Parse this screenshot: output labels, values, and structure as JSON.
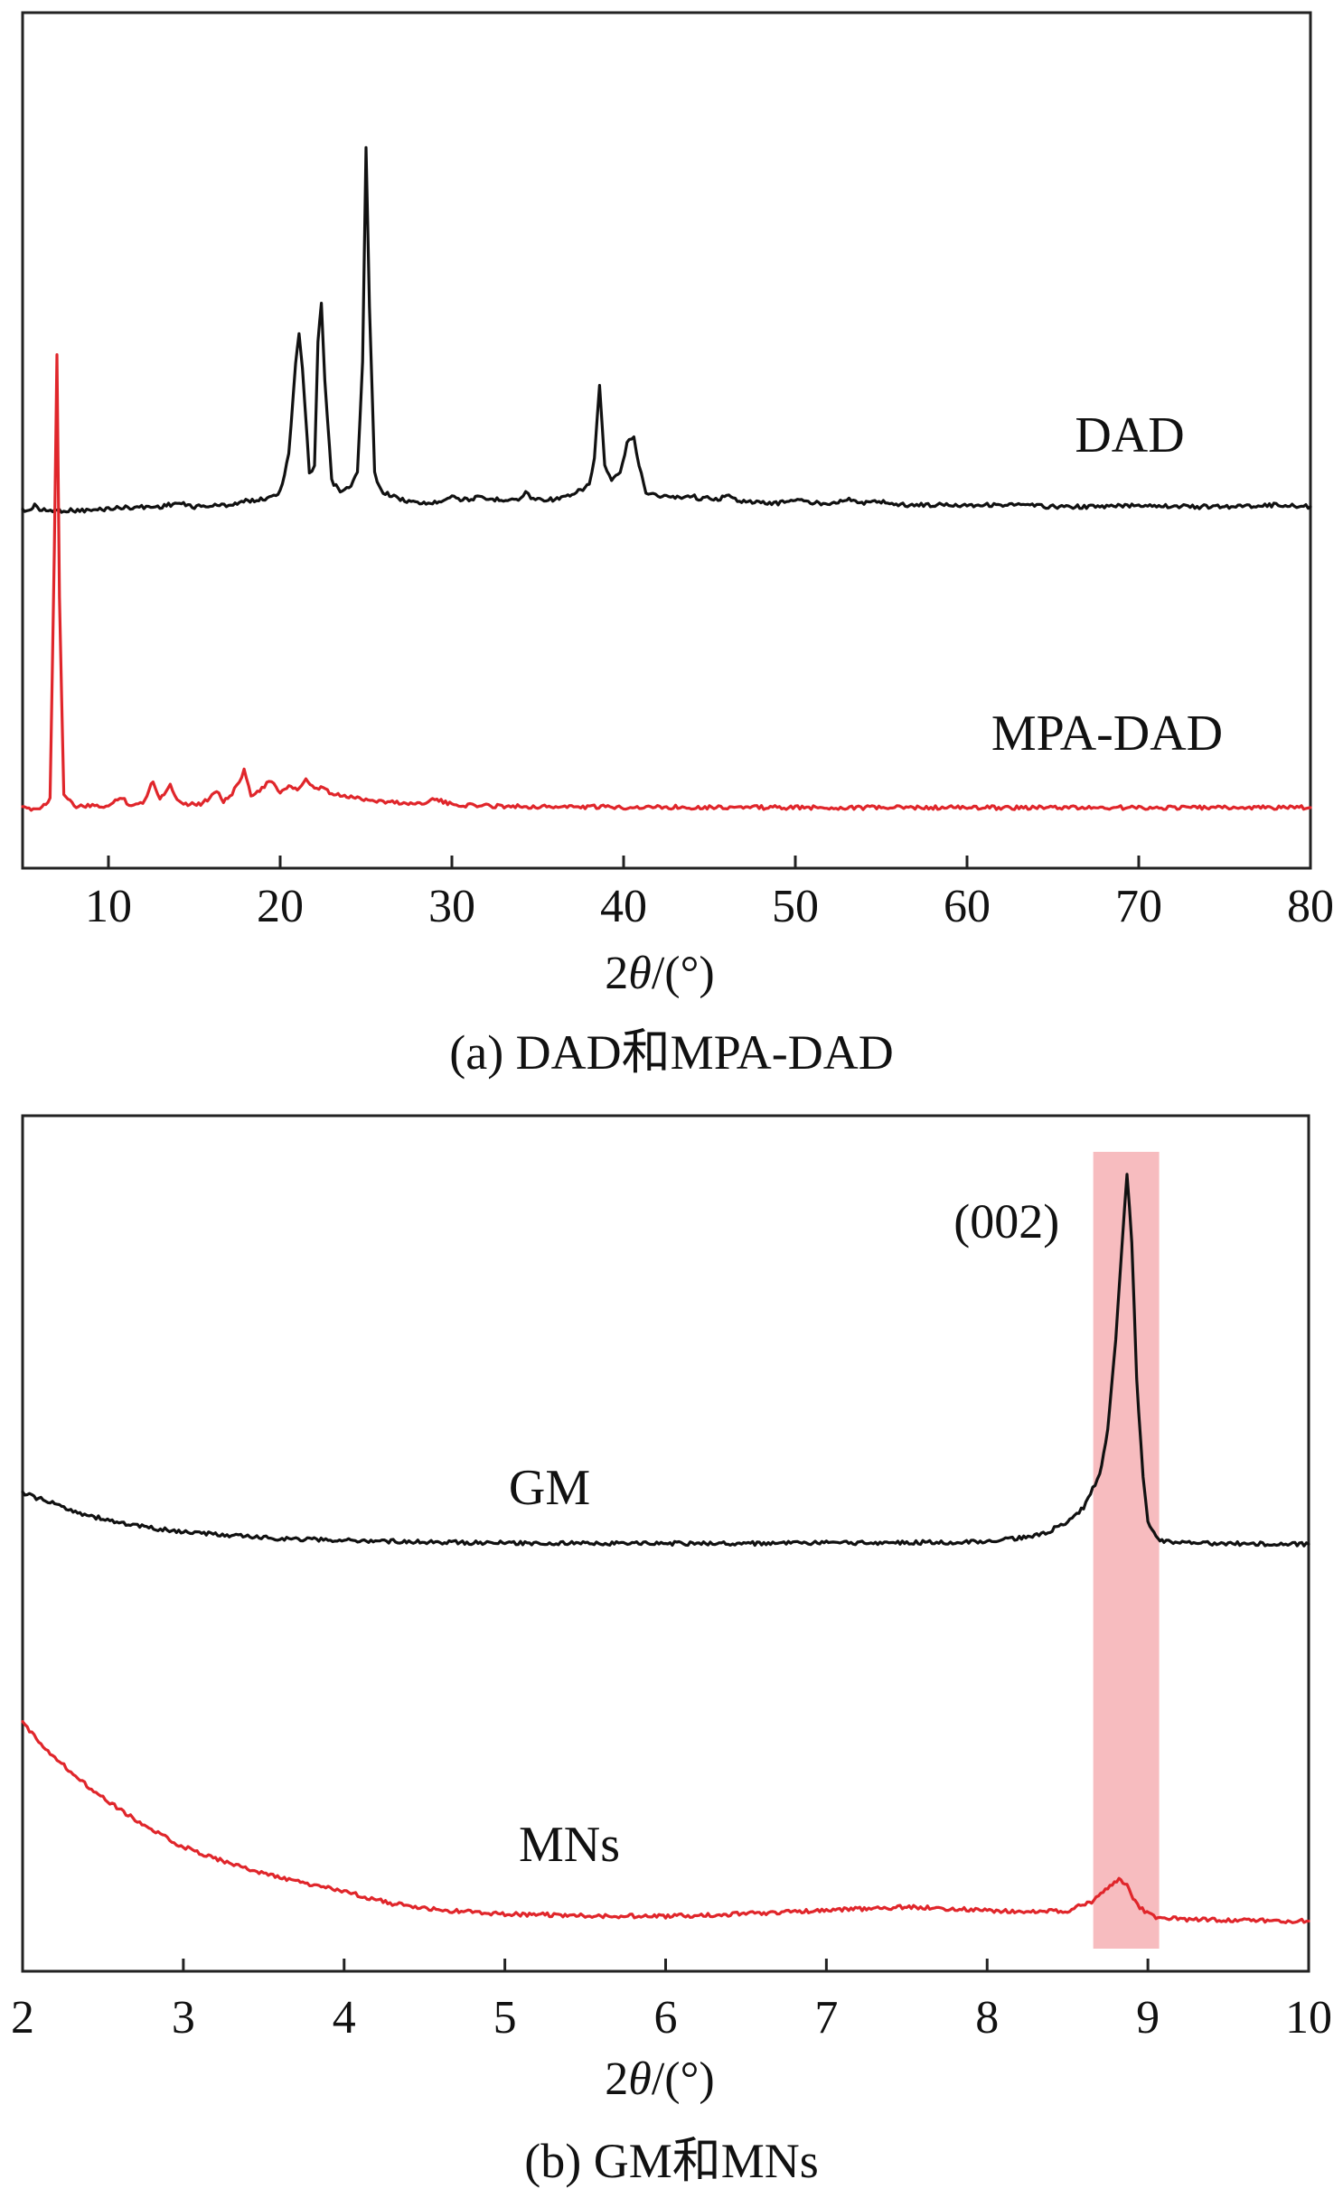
{
  "chart_data": [
    {
      "type": "line",
      "panel_caption": "(a) DAD和MPA-DAD",
      "xlabel": "2θ/(°)",
      "xlabel_parts": {
        "prefix": "2",
        "symbol": "θ",
        "suffix": "/(°)"
      },
      "ylabel": "",
      "xlim": [
        5,
        80
      ],
      "x_ticks": [
        10,
        20,
        30,
        40,
        50,
        60,
        70,
        80
      ],
      "y_ticks_shown": false,
      "series": [
        {
          "name": "DAD",
          "color": "#111111",
          "offset": 1.05,
          "x": [
            5,
            5.5,
            5.7,
            6,
            7,
            9,
            10,
            11,
            13,
            14,
            15,
            17,
            17.5,
            18,
            19,
            20,
            20.5,
            20.9,
            21.1,
            21.3,
            21.7,
            22,
            22.2,
            22.4,
            22.6,
            23,
            23.5,
            24,
            24.5,
            24.8,
            25.0,
            25.2,
            25.5,
            25.8,
            26,
            26.5,
            27,
            28,
            29,
            29.5,
            30,
            30.5,
            31,
            31.5,
            32,
            33,
            34,
            34.3,
            34.6,
            35,
            36,
            37,
            38,
            38.3,
            38.6,
            38.9,
            39.3,
            39.8,
            40.2,
            40.6,
            40.9,
            41.3,
            42,
            43,
            44,
            44.5,
            45,
            45.5,
            46,
            46.5,
            47,
            48,
            49,
            50,
            51,
            52,
            53,
            53.5,
            54,
            55,
            56,
            58,
            60,
            63,
            65,
            68,
            70,
            73,
            75,
            78,
            80
          ],
          "y": [
            0.0,
            0.0,
            0.02,
            0.0,
            0.0,
            0.0,
            0.005,
            0.008,
            0.01,
            0.02,
            0.01,
            0.015,
            0.02,
            0.025,
            0.03,
            0.05,
            0.15,
            0.4,
            0.48,
            0.38,
            0.1,
            0.12,
            0.45,
            0.56,
            0.35,
            0.08,
            0.05,
            0.06,
            0.1,
            0.4,
            0.98,
            0.55,
            0.1,
            0.06,
            0.05,
            0.04,
            0.03,
            0.02,
            0.02,
            0.03,
            0.04,
            0.03,
            0.03,
            0.035,
            0.03,
            0.03,
            0.03,
            0.05,
            0.035,
            0.03,
            0.03,
            0.04,
            0.07,
            0.14,
            0.34,
            0.12,
            0.08,
            0.1,
            0.18,
            0.2,
            0.12,
            0.05,
            0.04,
            0.035,
            0.04,
            0.03,
            0.035,
            0.03,
            0.04,
            0.03,
            0.025,
            0.02,
            0.02,
            0.03,
            0.02,
            0.02,
            0.03,
            0.025,
            0.02,
            0.025,
            0.015,
            0.015,
            0.015,
            0.015,
            0.01,
            0.01,
            0.015,
            0.01,
            0.01,
            0.015,
            0.01
          ]
        },
        {
          "name": "MPA-DAD",
          "color": "#e0262b",
          "offset": 0.0,
          "x": [
            5,
            6,
            6.6,
            6.85,
            7.0,
            7.15,
            7.4,
            8,
            10,
            10.8,
            11.2,
            12,
            12.6,
            13,
            13.6,
            14,
            14.5,
            15.5,
            16.3,
            16.7,
            17.2,
            17.9,
            18.3,
            18.8,
            19.5,
            20,
            20.5,
            21,
            21.5,
            22,
            22.5,
            23,
            24,
            25,
            26,
            28,
            29,
            30,
            32,
            35,
            40,
            45,
            50,
            55,
            60,
            65,
            70,
            75,
            80
          ],
          "y": [
            0.0,
            0.0,
            0.02,
            0.55,
            0.97,
            0.45,
            0.03,
            0.005,
            0.005,
            0.025,
            0.008,
            0.01,
            0.06,
            0.02,
            0.05,
            0.02,
            0.01,
            0.01,
            0.04,
            0.015,
            0.03,
            0.08,
            0.03,
            0.04,
            0.06,
            0.03,
            0.05,
            0.04,
            0.06,
            0.04,
            0.045,
            0.03,
            0.025,
            0.02,
            0.015,
            0.01,
            0.02,
            0.008,
            0.006,
            0.004,
            0.003,
            0.003,
            0.002,
            0.002,
            0.002,
            0.002,
            0.002,
            0.002,
            0.002
          ]
        }
      ]
    },
    {
      "type": "line",
      "panel_caption": "(b) GM和MNs",
      "xlabel": "2θ/(°)",
      "xlabel_parts": {
        "prefix": "2",
        "symbol": "θ",
        "suffix": "/(°)"
      },
      "ylabel": "",
      "xlim": [
        2,
        10
      ],
      "x_ticks": [
        2,
        3,
        4,
        5,
        6,
        7,
        8,
        9,
        10
      ],
      "y_ticks_shown": false,
      "highlight_band": {
        "x": [
          8.66,
          9.07
        ],
        "color": "#f4a6aa"
      },
      "annotations": [
        {
          "text": "(002)",
          "x": 8.88
        }
      ],
      "series": [
        {
          "name": "GM",
          "color": "#111111",
          "offset": 1.0,
          "x": [
            2.0,
            2.2,
            2.4,
            2.6,
            2.8,
            3.0,
            3.3,
            3.6,
            4.0,
            4.5,
            5.0,
            5.5,
            6.0,
            6.5,
            7.0,
            7.5,
            7.8,
            8.0,
            8.2,
            8.35,
            8.5,
            8.6,
            8.7,
            8.75,
            8.8,
            8.84,
            8.87,
            8.9,
            8.93,
            8.97,
            9.0,
            9.05,
            9.1,
            9.2,
            9.4,
            9.6,
            9.8,
            10.0
          ],
          "y": [
            0.14,
            0.11,
            0.08,
            0.06,
            0.045,
            0.035,
            0.025,
            0.017,
            0.012,
            0.008,
            0.005,
            0.004,
            0.004,
            0.004,
            0.005,
            0.006,
            0.007,
            0.01,
            0.018,
            0.03,
            0.06,
            0.1,
            0.19,
            0.31,
            0.55,
            0.82,
            1.0,
            0.82,
            0.45,
            0.18,
            0.06,
            0.02,
            0.01,
            0.006,
            0.004,
            0.003,
            0.002,
            0.002
          ]
        },
        {
          "name": "MNs",
          "color": "#e0262b",
          "offset": 0.0,
          "x": [
            2.0,
            2.2,
            2.4,
            2.6,
            2.8,
            3.0,
            3.3,
            3.6,
            4.0,
            4.3,
            4.6,
            5.0,
            5.5,
            6.0,
            6.5,
            7.0,
            7.5,
            7.8,
            8.0,
            8.3,
            8.5,
            8.65,
            8.75,
            8.82,
            8.87,
            8.92,
            8.98,
            9.05,
            9.2,
            9.4,
            9.6,
            9.8,
            10.0
          ],
          "y": [
            0.58,
            0.48,
            0.4,
            0.33,
            0.27,
            0.22,
            0.17,
            0.13,
            0.09,
            0.055,
            0.035,
            0.025,
            0.02,
            0.018,
            0.025,
            0.035,
            0.045,
            0.04,
            0.035,
            0.03,
            0.035,
            0.06,
            0.1,
            0.125,
            0.11,
            0.06,
            0.03,
            0.015,
            0.01,
            0.008,
            0.006,
            0.005,
            0.004
          ]
        }
      ]
    }
  ]
}
